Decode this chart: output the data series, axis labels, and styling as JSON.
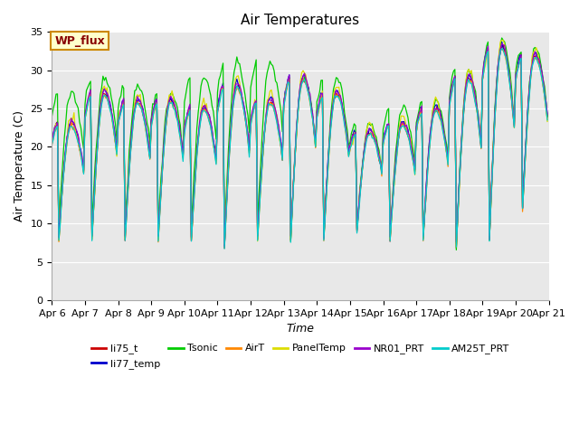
{
  "title": "Air Temperatures",
  "xlabel": "Time",
  "ylabel": "Air Temperature (C)",
  "ylim": [
    0,
    35
  ],
  "yticks": [
    0,
    5,
    10,
    15,
    20,
    25,
    30,
    35
  ],
  "series_names": [
    "li75_t",
    "li77_temp",
    "Tsonic",
    "AirT",
    "PanelTemp",
    "NR01_PRT",
    "AM25T_PRT"
  ],
  "series_colors": [
    "#cc0000",
    "#0000cc",
    "#00cc00",
    "#ff8800",
    "#dddd00",
    "#9900cc",
    "#00cccc"
  ],
  "n_days": 15,
  "n_hours": 360,
  "xtick_labels": [
    "Apr 6",
    "Apr 7",
    "Apr 8",
    "Apr 9",
    "Apr 10",
    "Apr 11",
    "Apr 12",
    "Apr 13",
    "Apr 14",
    "Apr 15",
    "Apr 16",
    "Apr 17",
    "Apr 18",
    "Apr 19",
    "Apr 20",
    "Apr 21"
  ],
  "plot_bg_color": "#e8e8e8",
  "annotation_text": "WP_flux",
  "annotation_facecolor": "#ffffcc",
  "annotation_edgecolor": "#cc8800",
  "annotation_textcolor": "#880000",
  "title_fontsize": 11,
  "axis_label_fontsize": 9,
  "tick_fontsize": 8,
  "legend_fontsize": 8,
  "day_peaks": [
    23,
    27,
    26,
    26,
    25,
    28,
    26,
    29,
    27,
    22,
    23,
    25,
    29,
    33,
    32
  ],
  "day_mins": [
    8,
    8,
    8,
    8,
    8,
    7,
    8,
    8,
    8,
    9,
    8,
    8,
    7,
    8,
    12
  ],
  "tsonic_extra": [
    4,
    2,
    2,
    1,
    4,
    3,
    5,
    0,
    2,
    1,
    2,
    1,
    1,
    1,
    1
  ]
}
